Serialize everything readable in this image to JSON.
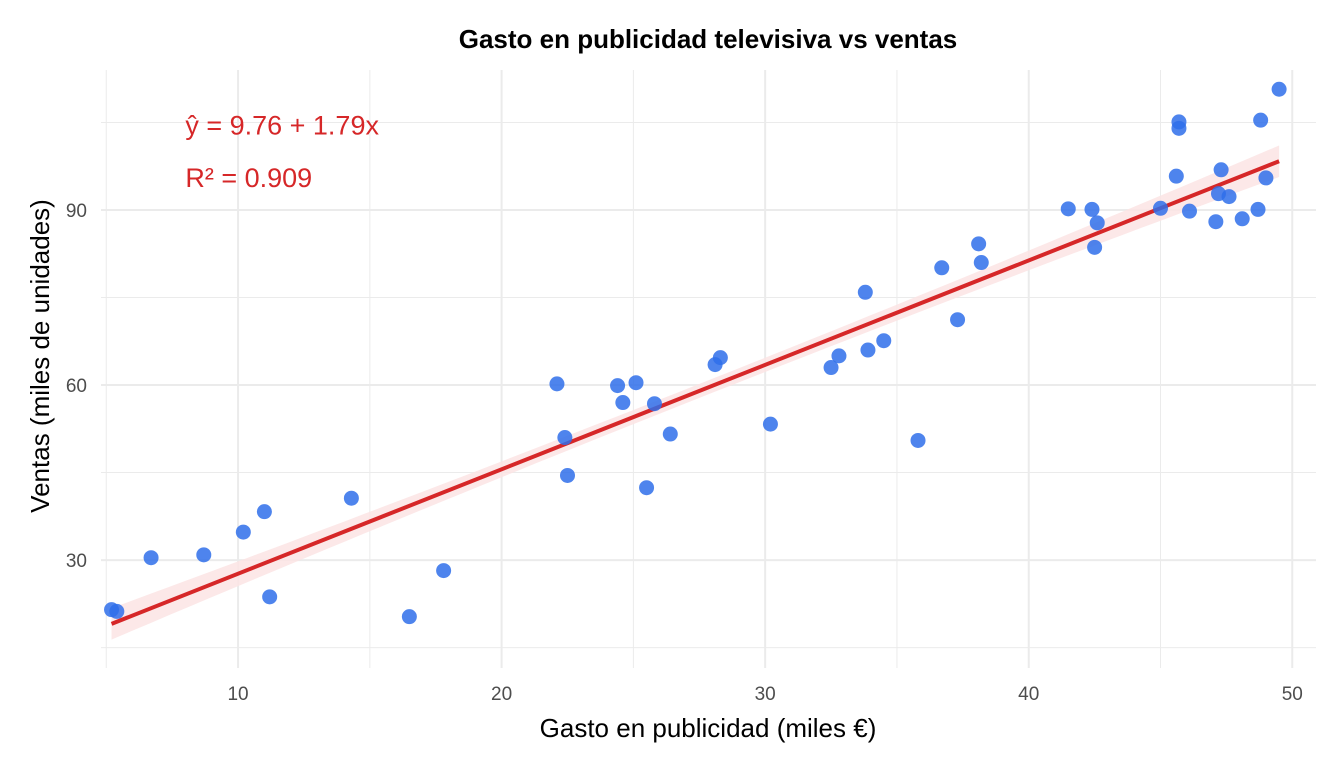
{
  "chart_data": {
    "type": "scatter",
    "title": "Gasto en publicidad televisiva vs ventas",
    "xlabel": "Gasto en publicidad (miles €)",
    "ylabel": "Ventas (miles de unidades)",
    "xlim": [
      4.8,
      50.9
    ],
    "ylim": [
      11.5,
      114
    ],
    "x_ticks": [
      10,
      20,
      30,
      40,
      50
    ],
    "y_ticks": [
      30,
      60,
      90
    ],
    "grid": true,
    "legend": "none",
    "colors": {
      "points": "#2f6fea",
      "fit_line": "#d62728",
      "band": "#fbe4e4",
      "grid": "#ebebeb"
    },
    "annotations": [
      {
        "text": "ŷ = 9.76 + 1.79x",
        "x": 8,
        "y": 104.5
      },
      {
        "text": "R² = 0.909",
        "x": 8,
        "y": 95.5
      }
    ],
    "fit": {
      "intercept": 9.76,
      "slope": 1.79,
      "x_range": [
        5.2,
        49.5
      ],
      "band_halfwidth_ends": 2.7,
      "band_halfwidth_mid": 1.2
    },
    "points": [
      {
        "x": 5.2,
        "y": 21.5
      },
      {
        "x": 5.4,
        "y": 21.2
      },
      {
        "x": 6.7,
        "y": 30.4
      },
      {
        "x": 8.7,
        "y": 30.9
      },
      {
        "x": 10.2,
        "y": 34.8
      },
      {
        "x": 11.0,
        "y": 38.3
      },
      {
        "x": 11.2,
        "y": 23.7
      },
      {
        "x": 14.3,
        "y": 40.6
      },
      {
        "x": 16.5,
        "y": 20.3
      },
      {
        "x": 17.8,
        "y": 28.2
      },
      {
        "x": 22.1,
        "y": 60.2
      },
      {
        "x": 22.4,
        "y": 51.0
      },
      {
        "x": 22.5,
        "y": 44.5
      },
      {
        "x": 24.4,
        "y": 59.9
      },
      {
        "x": 24.6,
        "y": 57.0
      },
      {
        "x": 25.1,
        "y": 60.4
      },
      {
        "x": 25.5,
        "y": 42.4
      },
      {
        "x": 25.8,
        "y": 56.8
      },
      {
        "x": 26.4,
        "y": 51.6
      },
      {
        "x": 28.1,
        "y": 63.5
      },
      {
        "x": 28.3,
        "y": 64.7
      },
      {
        "x": 30.2,
        "y": 53.3
      },
      {
        "x": 32.5,
        "y": 63.0
      },
      {
        "x": 32.8,
        "y": 65.0
      },
      {
        "x": 33.8,
        "y": 75.9
      },
      {
        "x": 33.9,
        "y": 66.0
      },
      {
        "x": 34.5,
        "y": 67.6
      },
      {
        "x": 35.8,
        "y": 50.5
      },
      {
        "x": 36.7,
        "y": 80.1
      },
      {
        "x": 37.3,
        "y": 71.2
      },
      {
        "x": 38.1,
        "y": 84.2
      },
      {
        "x": 38.2,
        "y": 81.0
      },
      {
        "x": 41.5,
        "y": 90.2
      },
      {
        "x": 42.4,
        "y": 90.1
      },
      {
        "x": 42.5,
        "y": 83.6
      },
      {
        "x": 42.6,
        "y": 87.8
      },
      {
        "x": 45.0,
        "y": 90.3
      },
      {
        "x": 45.6,
        "y": 95.8
      },
      {
        "x": 45.7,
        "y": 105.1
      },
      {
        "x": 45.7,
        "y": 104.0
      },
      {
        "x": 46.1,
        "y": 89.8
      },
      {
        "x": 47.1,
        "y": 88.0
      },
      {
        "x": 47.2,
        "y": 92.8
      },
      {
        "x": 47.3,
        "y": 96.9
      },
      {
        "x": 47.6,
        "y": 92.3
      },
      {
        "x": 48.1,
        "y": 88.5
      },
      {
        "x": 48.7,
        "y": 90.1
      },
      {
        "x": 48.8,
        "y": 105.4
      },
      {
        "x": 49.0,
        "y": 95.5
      },
      {
        "x": 49.5,
        "y": 110.7
      }
    ]
  }
}
